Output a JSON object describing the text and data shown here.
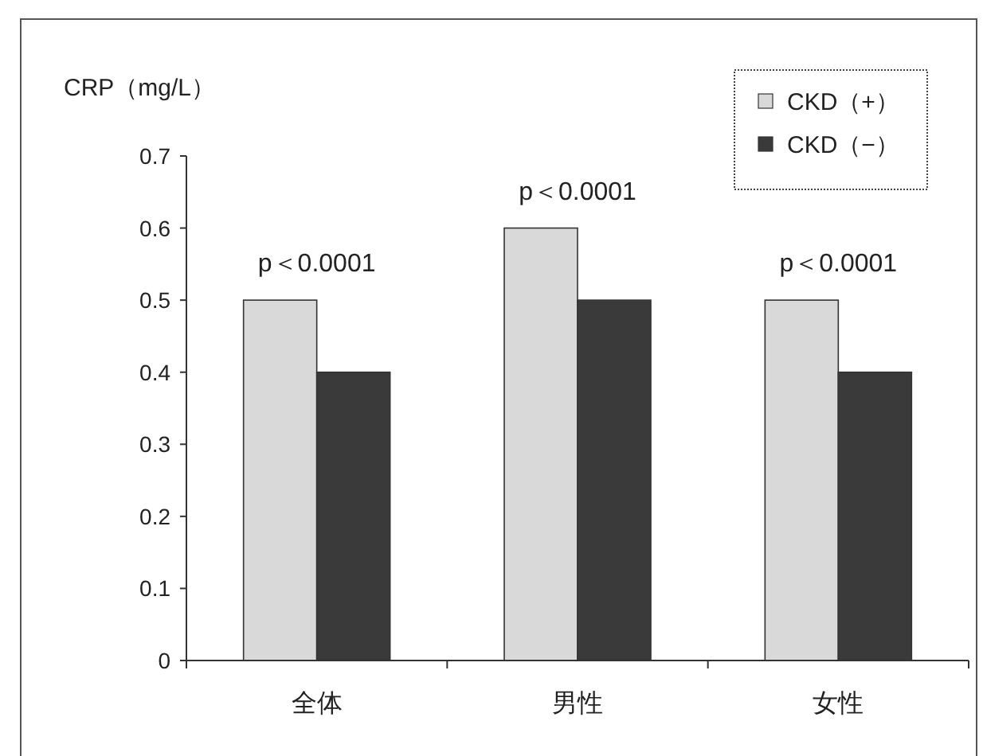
{
  "chart_data": {
    "type": "bar",
    "ylabel": "CRP（mg/L）",
    "categories": [
      "全体",
      "男性",
      "女性"
    ],
    "series": [
      {
        "name": "CKD（+）",
        "color": "#d9d9d9",
        "values": [
          0.5,
          0.6,
          0.5
        ]
      },
      {
        "name": "CKD（−）",
        "color": "#3a3a3a",
        "values": [
          0.4,
          0.5,
          0.4
        ]
      }
    ],
    "ylim": [
      0,
      0.7
    ],
    "yticks": [
      0,
      0.1,
      0.2,
      0.3,
      0.4,
      0.5,
      0.6,
      0.7
    ],
    "legend": "top right",
    "grid": false,
    "annotations": [
      {
        "text": "p＜0.0001",
        "x": "全体",
        "y": 0.5
      },
      {
        "text": "p＜0.0001",
        "x": "男性",
        "y": 0.6
      },
      {
        "text": "p＜0.0001",
        "x": "女性",
        "y": 0.5
      }
    ]
  }
}
